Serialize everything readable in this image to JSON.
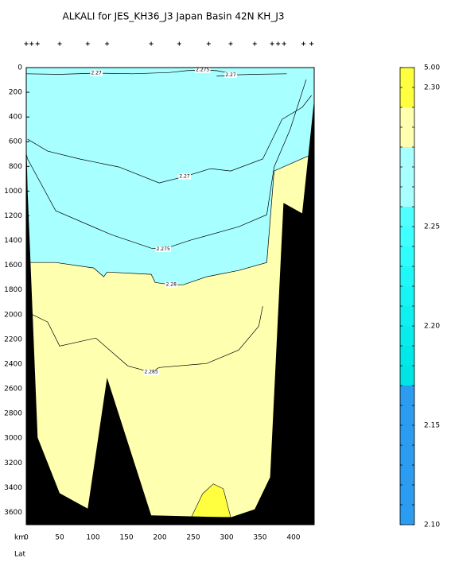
{
  "chart_data": {
    "type": "section",
    "title": "ALKALI for JES_KH36_J3 Japan Basin 42N KH_J3",
    "xlabel": "km",
    "xlabel2": "Lat",
    "xlim": [
      0,
      431
    ],
    "ylim": [
      0,
      3700
    ],
    "xticks": [
      0,
      50,
      100,
      150,
      200,
      250,
      300,
      350,
      400
    ],
    "yticks": [
      0,
      200,
      400,
      600,
      800,
      1000,
      1200,
      1400,
      1600,
      1800,
      2000,
      2200,
      2400,
      2600,
      2800,
      3000,
      3200,
      3400,
      3600
    ],
    "background_color": "#a8ffff",
    "stations_km": [
      0,
      8,
      17,
      50,
      92,
      121,
      187,
      229,
      273,
      306,
      342,
      368,
      377,
      386,
      415,
      427
    ],
    "contours": [
      {
        "label": "2.27",
        "x": [
          0,
          50,
          105,
          160,
          215
        ],
        "y": [
          50,
          55,
          45,
          50,
          40
        ]
      },
      {
        "label": "2.275",
        "x": [
          215,
          240,
          264,
          285,
          300
        ],
        "y": [
          40,
          25,
          20,
          25,
          40
        ]
      },
      {
        "label": "2.27",
        "x": [
          285,
          300,
          306,
          340,
          390
        ],
        "y": [
          70,
          65,
          60,
          55,
          50
        ]
      },
      {
        "label": "2.27",
        "x": [
          2,
          32,
          80,
          139,
          199,
          237,
          276,
          306,
          354,
          383,
          413,
          427
        ],
        "y": [
          580,
          676,
          740,
          805,
          934,
          882,
          818,
          837,
          740,
          418,
          322,
          225
        ]
      },
      {
        "label": "2.275",
        "x": [
          0,
          2,
          44,
          127,
          187,
          205,
          246,
          318,
          360,
          371,
          395,
          419
        ],
        "y": [
          700,
          740,
          1159,
          1352,
          1462,
          1470,
          1397,
          1288,
          1191,
          805,
          500,
          97
        ]
      },
      {
        "label": "2.28",
        "fill": "#ffffb0",
        "x": [
          0,
          44,
          101,
          116,
          121,
          187,
          193,
          217,
          235,
          270,
          318,
          360,
          371,
          417,
          431
        ],
        "y": [
          1578,
          1578,
          1622,
          1693,
          1655,
          1674,
          1739,
          1758,
          1758,
          1693,
          1642,
          1578,
          837,
          728,
          700
        ]
      },
      {
        "label": "2.285",
        "x": [
          8,
          32,
          50,
          104,
          152,
          187,
          199,
          270,
          318,
          348,
          354
        ],
        "y": [
          1996,
          2060,
          2254,
          2189,
          2415,
          2466,
          2428,
          2395,
          2286,
          2093,
          1932
        ]
      }
    ],
    "regions": [
      {
        "color": "#ffff40",
        "x": [
          247,
          264,
          280,
          295,
          306
        ],
        "y": [
          3640,
          3450,
          3370,
          3410,
          3640
        ]
      }
    ],
    "topography": {
      "color": "#000000",
      "x": [
        0,
        0,
        2,
        17,
        50,
        92,
        121,
        187,
        306,
        342,
        365,
        385,
        413,
        431,
        431
      ],
      "y": [
        3700,
        560,
        1000,
        2995,
        3445,
        3570,
        2510,
        3625,
        3640,
        3575,
        3315,
        1095,
        1180,
        258,
        3700
      ]
    },
    "colorbar": {
      "levels": [
        5,
        2.3,
        2.29,
        2.285,
        2.28,
        2.275,
        2.27,
        2.26,
        2.25,
        2.24,
        2.23,
        2.22,
        2.21,
        2.2,
        2.19,
        2.18,
        2.17,
        2.16,
        2.15,
        2.14,
        2.13,
        2.12,
        2.11,
        2.1
      ],
      "colors": [
        "#ffff40",
        "#ffff40",
        "#ffffb0",
        "#ffffb0",
        "#a8ffff",
        "#a8ffff",
        "#a8ffff",
        "#50ffff",
        "#40ffff",
        "#30fcfc",
        "#20f8f8",
        "#18f4f4",
        "#10f0f0",
        "#08ecec",
        "#00e8e8",
        "#00e4e4",
        "#2c9cf0",
        "#2c9cf0",
        "#2c9cf0",
        "#2c9cf0",
        "#2c9cf0",
        "#2c9cf0",
        "#2c9cf0"
      ],
      "ticks": [
        {
          "value": 5,
          "label": "5.00"
        },
        {
          "value": 2.3,
          "label": "2.30"
        },
        {
          "value": 2.25,
          "label": "2.25"
        },
        {
          "value": 2.2,
          "label": "2.20"
        },
        {
          "value": 2.15,
          "label": "2.15"
        },
        {
          "value": 2.1,
          "label": "2.10"
        }
      ]
    }
  }
}
